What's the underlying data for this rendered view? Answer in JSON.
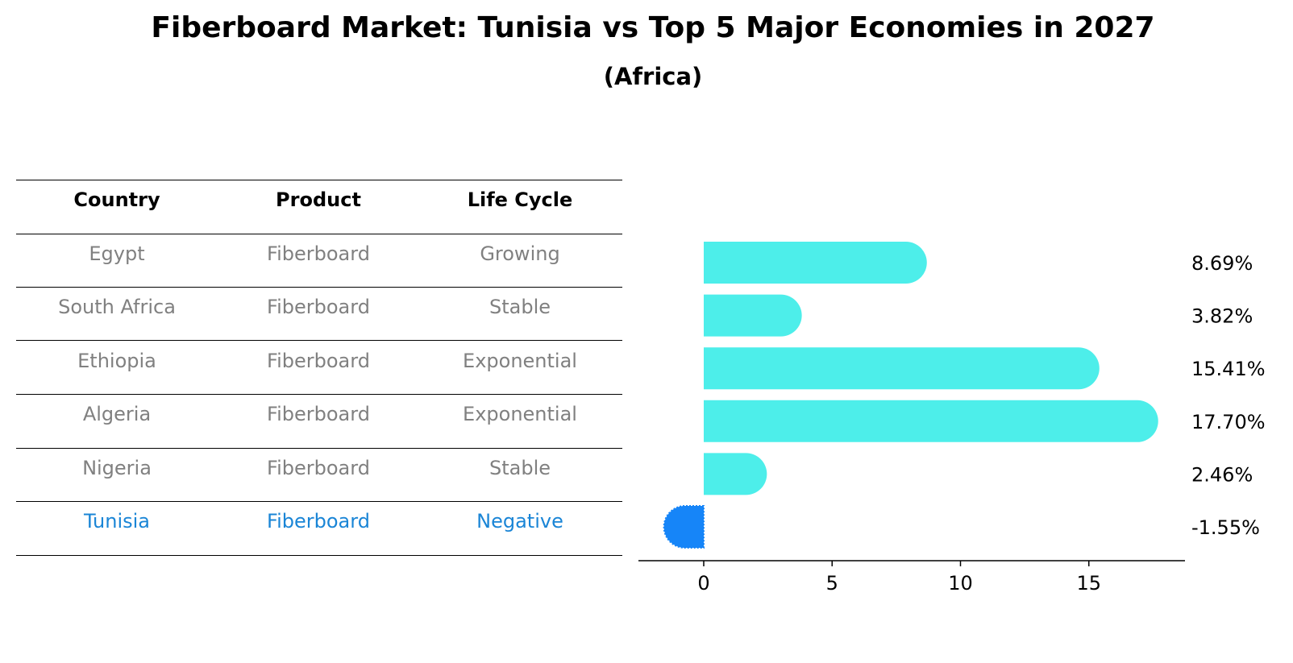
{
  "title": "Fiberboard Market: Tunisia vs Top 5 Major Economies in 2027",
  "subtitle": "(Africa)",
  "table": {
    "headers": [
      "Country",
      "Product",
      "Life Cycle"
    ],
    "rows": [
      {
        "country": "Egypt",
        "product": "Fiberboard",
        "life_cycle": "Growing",
        "highlight": false
      },
      {
        "country": "South Africa",
        "product": "Fiberboard",
        "life_cycle": "Stable",
        "highlight": false
      },
      {
        "country": "Ethiopia",
        "product": "Fiberboard",
        "life_cycle": "Exponential",
        "highlight": false
      },
      {
        "country": "Algeria",
        "product": "Fiberboard",
        "life_cycle": "Exponential",
        "highlight": false
      },
      {
        "country": "Nigeria",
        "product": "Fiberboard",
        "life_cycle": "Stable",
        "highlight": false
      },
      {
        "country": "Tunisia",
        "product": "Fiberboard",
        "life_cycle": "Negative",
        "highlight": true
      }
    ]
  },
  "chart_data": {
    "type": "bar",
    "orientation": "horizontal",
    "categories": [
      "Egypt",
      "South Africa",
      "Ethiopia",
      "Algeria",
      "Nigeria",
      "Tunisia"
    ],
    "values": [
      8.69,
      3.82,
      15.41,
      17.7,
      2.46,
      -1.55
    ],
    "value_labels": [
      "8.69%",
      "3.82%",
      "15.41%",
      "17.70%",
      "2.46%",
      "-1.55%"
    ],
    "xticks": [
      0,
      5,
      10,
      15
    ],
    "xlim": [
      -2.55,
      18.7
    ],
    "grid": false,
    "colors": {
      "default": "#4deeea",
      "highlight": "#1685f8"
    }
  }
}
